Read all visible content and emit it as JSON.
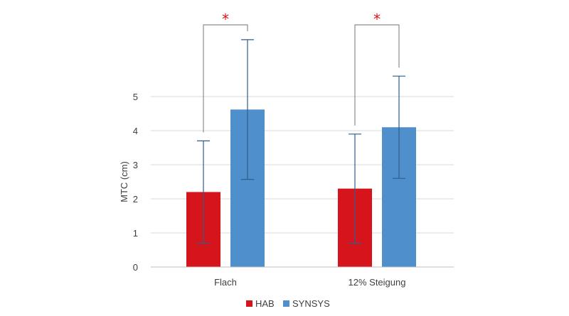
{
  "chart_data": {
    "type": "bar",
    "categories": [
      "Flach",
      "12% Steigung"
    ],
    "series": [
      {
        "name": "HAB",
        "color": "#d6141b",
        "values": [
          2.2,
          2.3
        ],
        "error": [
          1.5,
          1.6
        ]
      },
      {
        "name": "SYNSYS",
        "color": "#4f8fcc",
        "values": [
          4.62,
          4.1
        ],
        "error": [
          2.05,
          1.5
        ]
      }
    ],
    "ylabel": "MTC (cm)",
    "ylim": [
      0,
      5
    ],
    "yticks": [
      "0",
      "1",
      "2",
      "3",
      "4",
      "5"
    ],
    "grid": true,
    "legend_position": "bottom",
    "significance": [
      {
        "category": "Flach",
        "symbol": "*"
      },
      {
        "category": "12% Steigung",
        "symbol": "*"
      }
    ],
    "colors": {
      "grid": "#d9d9d9",
      "axis": "#bfbfbf",
      "bracket": "#8c8c8c",
      "error_bar": "#2e5f8a",
      "star": "#d6141b"
    }
  }
}
